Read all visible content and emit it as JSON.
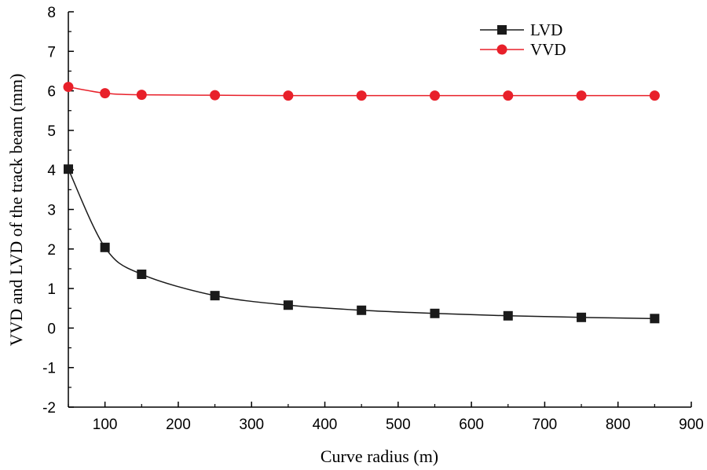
{
  "chart_data": {
    "type": "line",
    "xlabel": "Curve radius (m)",
    "ylabel": "VVD and LVD of the track beam (mm)",
    "xlim": [
      50,
      900
    ],
    "ylim": [
      -2,
      8
    ],
    "x_ticks": [
      100,
      200,
      300,
      400,
      500,
      600,
      700,
      800,
      900
    ],
    "y_ticks": [
      -2,
      -1,
      0,
      1,
      2,
      3,
      4,
      5,
      6,
      7,
      8
    ],
    "grid": false,
    "legend_position": "top-right",
    "x": [
      50,
      100,
      150,
      250,
      350,
      450,
      550,
      650,
      750,
      850
    ],
    "series": [
      {
        "name": "LVD",
        "color": "#1a1a1a",
        "marker": "square",
        "values": [
          4.02,
          2.04,
          1.36,
          0.82,
          0.58,
          0.45,
          0.37,
          0.31,
          0.27,
          0.24
        ]
      },
      {
        "name": "VVD",
        "color": "#e8202a",
        "marker": "circle",
        "values": [
          6.1,
          5.94,
          5.9,
          5.89,
          5.88,
          5.88,
          5.88,
          5.88,
          5.88,
          5.88
        ]
      }
    ]
  }
}
